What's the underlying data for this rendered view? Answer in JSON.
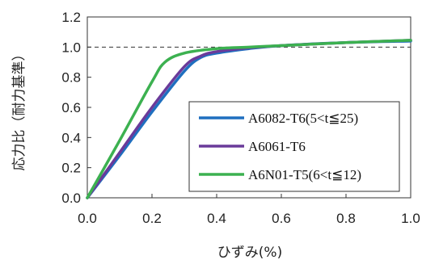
{
  "chart_data": {
    "type": "line",
    "xlabel": "ひずみ(%)",
    "ylabel": "応力比（耐力基準）",
    "xlim": [
      0,
      1.0
    ],
    "ylim": [
      0,
      1.2
    ],
    "x_ticks": [
      "0.0",
      "0.2",
      "0.4",
      "0.6",
      "0.8",
      "1.0"
    ],
    "y_ticks": [
      "0.0",
      "0.2",
      "0.4",
      "0.6",
      "0.8",
      "1.0",
      "1.2"
    ],
    "reference_line": {
      "y": 1.0,
      "style": "dashed"
    },
    "grid": false,
    "legend_position": "center-right",
    "series": [
      {
        "name": "A6082-T6(5<t≦25)",
        "color": "#1f6fbf",
        "x": [
          0.0,
          0.1,
          0.2,
          0.3,
          0.35,
          0.4,
          0.5,
          0.6,
          0.8,
          1.0
        ],
        "y": [
          0.0,
          0.28,
          0.57,
          0.84,
          0.93,
          0.96,
          0.99,
          1.01,
          1.03,
          1.04
        ]
      },
      {
        "name": "A6061-T6",
        "color": "#6a3a9a",
        "x": [
          0.0,
          0.1,
          0.2,
          0.3,
          0.35,
          0.4,
          0.5,
          0.6,
          0.8,
          1.0
        ],
        "y": [
          0.0,
          0.3,
          0.6,
          0.87,
          0.94,
          0.97,
          0.995,
          1.01,
          1.03,
          1.045
        ]
      },
      {
        "name": "A6N01-T5(6<t≦12)",
        "color": "#3cb150",
        "x": [
          0.0,
          0.1,
          0.2,
          0.24,
          0.3,
          0.4,
          0.5,
          0.6,
          0.8,
          1.0
        ],
        "y": [
          0.0,
          0.38,
          0.77,
          0.9,
          0.96,
          0.99,
          1.0,
          1.01,
          1.03,
          1.045
        ]
      }
    ]
  }
}
